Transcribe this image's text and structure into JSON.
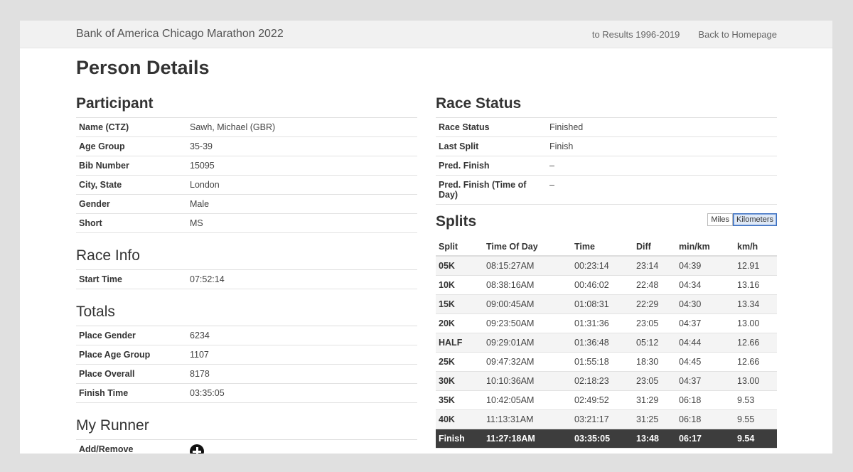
{
  "header": {
    "brand": "Bank of America Chicago Marathon 2022",
    "links": [
      "to Results 1996-2019",
      "Back to Homepage"
    ]
  },
  "page_title": "Person Details",
  "participant": {
    "title": "Participant",
    "rows": [
      {
        "k": "Name (CTZ)",
        "v": "Sawh, Michael (GBR)"
      },
      {
        "k": "Age Group",
        "v": "35-39"
      },
      {
        "k": "Bib Number",
        "v": "15095"
      },
      {
        "k": "City, State",
        "v": "London"
      },
      {
        "k": "Gender",
        "v": "Male"
      },
      {
        "k": "Short",
        "v": "MS"
      }
    ]
  },
  "race_info": {
    "title": "Race Info",
    "rows": [
      {
        "k": "Start Time",
        "v": "07:52:14"
      }
    ]
  },
  "totals": {
    "title": "Totals",
    "rows": [
      {
        "k": "Place Gender",
        "v": "6234"
      },
      {
        "k": "Place Age Group",
        "v": "1107"
      },
      {
        "k": "Place Overall",
        "v": "8178"
      },
      {
        "k": "Finish Time",
        "v": "03:35:05"
      }
    ]
  },
  "my_runner": {
    "title": "My Runner",
    "label": "Add/Remove",
    "icon": "plus-circle-icon"
  },
  "race_status": {
    "title": "Race Status",
    "rows": [
      {
        "k": "Race Status",
        "v": "Finished"
      },
      {
        "k": "Last Split",
        "v": "Finish"
      },
      {
        "k": "Pred. Finish",
        "v": "–"
      },
      {
        "k": "Pred. Finish (Time of Day)",
        "v": "–"
      }
    ]
  },
  "splits": {
    "title": "Splits",
    "units": [
      "Miles",
      "Kilometers"
    ],
    "active_unit": "Kilometers",
    "columns": [
      "Split",
      "Time Of Day",
      "Time",
      "Diff",
      "min/km",
      "km/h"
    ],
    "rows": [
      [
        "05K",
        "08:15:27AM",
        "00:23:14",
        "23:14",
        "04:39",
        "12.91"
      ],
      [
        "10K",
        "08:38:16AM",
        "00:46:02",
        "22:48",
        "04:34",
        "13.16"
      ],
      [
        "15K",
        "09:00:45AM",
        "01:08:31",
        "22:29",
        "04:30",
        "13.34"
      ],
      [
        "20K",
        "09:23:50AM",
        "01:31:36",
        "23:05",
        "04:37",
        "13.00"
      ],
      [
        "HALF",
        "09:29:01AM",
        "01:36:48",
        "05:12",
        "04:44",
        "12.66"
      ],
      [
        "25K",
        "09:47:32AM",
        "01:55:18",
        "18:30",
        "04:45",
        "12.66"
      ],
      [
        "30K",
        "10:10:36AM",
        "02:18:23",
        "23:05",
        "04:37",
        "13.00"
      ],
      [
        "35K",
        "10:42:05AM",
        "02:49:52",
        "31:29",
        "06:18",
        "9.53"
      ],
      [
        "40K",
        "11:13:31AM",
        "03:21:17",
        "31:25",
        "06:18",
        "9.55"
      ],
      [
        "Finish",
        "11:27:18AM",
        "03:35:05",
        "13:48",
        "06:17",
        "9.54"
      ]
    ]
  }
}
